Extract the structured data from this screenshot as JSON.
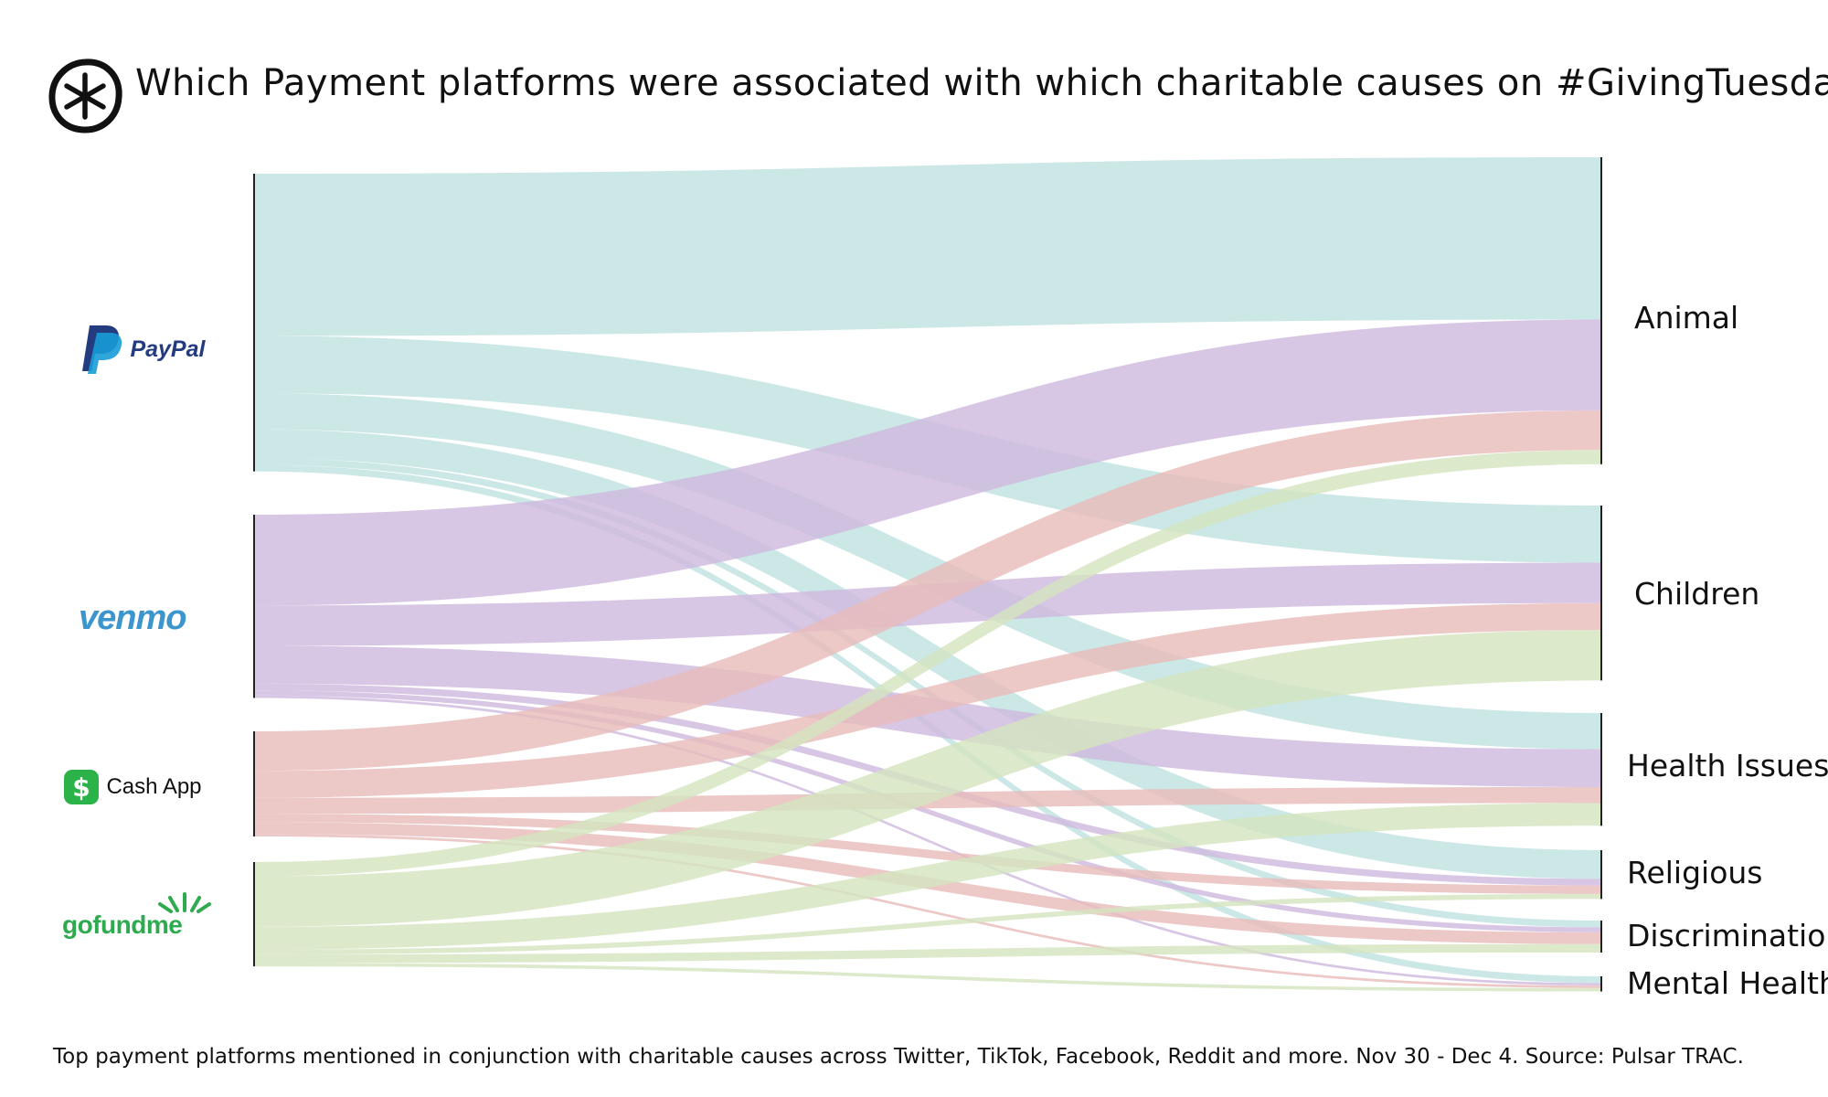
{
  "title": "Which Payment platforms were associated with which charitable causes on #GivingTuesday?",
  "footnote": "Top payment platforms mentioned in conjunction with charitable causes across Twitter, TikTok, Facebook, Reddit and more. Nov 30 - Dec 4. Source: Pulsar TRAC.",
  "logo_icon": "pulsar-asterisk-icon",
  "sources": [
    {
      "name": "PayPal",
      "logo": "paypal-logo",
      "color": "#bfe2e1"
    },
    {
      "name": "venmo",
      "logo": "venmo-logo",
      "color": "#cfb9df"
    },
    {
      "name": "Cash App",
      "logo": "cash-app-logo",
      "color": "#e8bcbb"
    },
    {
      "name": "gofundme",
      "logo": "gofundme-logo",
      "color": "#d4e4c0"
    }
  ],
  "targets": [
    "Animal",
    "Children",
    "Health Issues",
    "Religious",
    "Discrimination",
    "Mental Health"
  ],
  "chart_data": {
    "type": "sankey",
    "nodes_left": [
      "PayPal",
      "venmo",
      "Cash App",
      "gofundme"
    ],
    "nodes_right": [
      "Animal",
      "Children",
      "Health Issues",
      "Religious",
      "Discrimination",
      "Mental Health"
    ],
    "links": [
      {
        "source": "PayPal",
        "target": "Animal",
        "value": 193
      },
      {
        "source": "PayPal",
        "target": "Children",
        "value": 68
      },
      {
        "source": "PayPal",
        "target": "Health Issues",
        "value": 43
      },
      {
        "source": "PayPal",
        "target": "Religious",
        "value": 34
      },
      {
        "source": "PayPal",
        "target": "Discrimination",
        "value": 8
      },
      {
        "source": "PayPal",
        "target": "Mental Health",
        "value": 8
      },
      {
        "source": "venmo",
        "target": "Animal",
        "value": 108
      },
      {
        "source": "venmo",
        "target": "Children",
        "value": 48
      },
      {
        "source": "venmo",
        "target": "Health Issues",
        "value": 45
      },
      {
        "source": "venmo",
        "target": "Religious",
        "value": 8
      },
      {
        "source": "venmo",
        "target": "Discrimination",
        "value": 6
      },
      {
        "source": "venmo",
        "target": "Mental Health",
        "value": 3
      },
      {
        "source": "Cash App",
        "target": "Animal",
        "value": 47
      },
      {
        "source": "Cash App",
        "target": "Children",
        "value": 32
      },
      {
        "source": "Cash App",
        "target": "Health Issues",
        "value": 19
      },
      {
        "source": "Cash App",
        "target": "Religious",
        "value": 10
      },
      {
        "source": "Cash App",
        "target": "Discrimination",
        "value": 14
      },
      {
        "source": "Cash App",
        "target": "Mental Health",
        "value": 3
      },
      {
        "source": "gofundme",
        "target": "Animal",
        "value": 17
      },
      {
        "source": "gofundme",
        "target": "Children",
        "value": 60
      },
      {
        "source": "gofundme",
        "target": "Health Issues",
        "value": 27
      },
      {
        "source": "gofundme",
        "target": "Religious",
        "value": 6
      },
      {
        "source": "gofundme",
        "target": "Discrimination",
        "value": 10
      },
      {
        "source": "gofundme",
        "target": "Mental Health",
        "value": 4
      }
    ]
  }
}
